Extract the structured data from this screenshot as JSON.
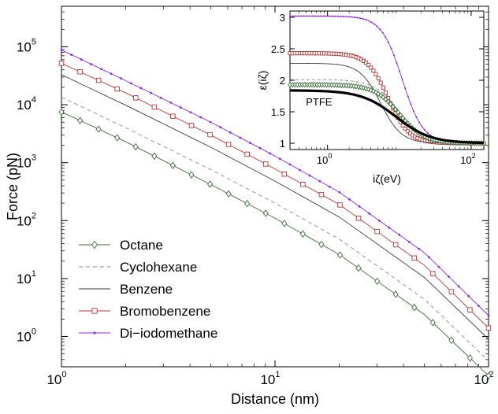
{
  "chart_data": [
    {
      "type": "line",
      "xlabel": "Distance (nm)",
      "ylabel": "Force (pN)",
      "xscale": "log",
      "yscale": "log",
      "xlim": [
        1,
        100
      ],
      "ylim": [
        0.3,
        500000
      ],
      "x_ticks": [
        {
          "base": "10",
          "exp": "0",
          "value": 1
        },
        {
          "base": "10",
          "exp": "1",
          "value": 10
        },
        {
          "base": "10",
          "exp": "2",
          "value": 100
        }
      ],
      "y_ticks": [
        {
          "base": "10",
          "exp": "0",
          "value": 1
        },
        {
          "base": "10",
          "exp": "1",
          "value": 10
        },
        {
          "base": "10",
          "exp": "2",
          "value": 100
        },
        {
          "base": "10",
          "exp": "3",
          "value": 1000
        },
        {
          "base": "10",
          "exp": "4",
          "value": 10000
        },
        {
          "base": "10",
          "exp": "5",
          "value": 100000
        }
      ],
      "grid": false,
      "legend_position": "bottom-left",
      "series": [
        {
          "name": "Octane",
          "color": "#3a6e3a",
          "marker": "diamond",
          "dash": "solid",
          "points": [
            [
              1,
              7500
            ],
            [
              2,
              2300
            ],
            [
              5,
              420
            ],
            [
              10,
              110
            ],
            [
              20,
              26
            ],
            [
              50,
              2.4
            ],
            [
              100,
              0.21
            ]
          ]
        },
        {
          "name": "Cyclohexane",
          "color": "#8a8a8a",
          "marker": "none",
          "dash": "dashed",
          "points": [
            [
              1,
              13500
            ],
            [
              2,
              4000
            ],
            [
              5,
              760
            ],
            [
              10,
              200
            ],
            [
              20,
              48
            ],
            [
              50,
              4.4
            ],
            [
              100,
              0.38
            ]
          ]
        },
        {
          "name": "Benzene",
          "color": "#3a3a3a",
          "marker": "none",
          "dash": "solid",
          "points": [
            [
              1,
              33000
            ],
            [
              2,
              9800
            ],
            [
              5,
              1850
            ],
            [
              10,
              480
            ],
            [
              20,
              115
            ],
            [
              50,
              10.5
            ],
            [
              100,
              0.9
            ]
          ]
        },
        {
          "name": "Bromobenzene",
          "color": "#b03a3a",
          "marker": "square",
          "dash": "solid",
          "points": [
            [
              1,
              52000
            ],
            [
              2,
              16000
            ],
            [
              5,
              3000
            ],
            [
              10,
              780
            ],
            [
              20,
              190
            ],
            [
              50,
              17
            ],
            [
              100,
              1.4
            ]
          ]
        },
        {
          "name": "Di−iodomethane",
          "color": "#8a2be2",
          "marker": "dot",
          "dash": "solid",
          "points": [
            [
              1,
              88000
            ],
            [
              2,
              26000
            ],
            [
              5,
              5000
            ],
            [
              10,
              1300
            ],
            [
              20,
              310
            ],
            [
              50,
              28
            ],
            [
              100,
              2.3
            ]
          ]
        }
      ]
    },
    {
      "type": "line",
      "xlabel": "iζ(eV)",
      "ylabel": "ε(iζ)",
      "xscale": "log",
      "yscale": "linear",
      "xlim": [
        0.3,
        150
      ],
      "ylim": [
        0.9,
        3.1
      ],
      "x_ticks": [
        {
          "base": "10",
          "exp": "0",
          "value": 1
        },
        {
          "base": "10",
          "exp": "2",
          "value": 100
        }
      ],
      "y_ticks": [
        {
          "label": "1",
          "value": 1
        },
        {
          "label": "1.5",
          "value": 1.5
        },
        {
          "label": "2",
          "value": 2
        },
        {
          "label": "2.5",
          "value": 2.5
        },
        {
          "label": "3",
          "value": 3
        }
      ],
      "annotations": [
        "PTFE"
      ],
      "series": [
        {
          "ref": "Di−iodomethane",
          "color": "#8a2be2",
          "marker": "dot",
          "dash": "solid",
          "eps0": 3.02,
          "wc": 11,
          "n": 3
        },
        {
          "ref": "Bromobenzene",
          "color": "#b03a3a",
          "marker": "square",
          "dash": "solid",
          "eps0": 2.43,
          "wc": 7,
          "n": 3
        },
        {
          "ref": "Benzene",
          "color": "#3a3a3a",
          "marker": "none",
          "dash": "solid",
          "eps0": 2.27,
          "wc": 5.5,
          "n": 3
        },
        {
          "ref": "Cyclohexane",
          "color": "#8a8a8a",
          "marker": "none",
          "dash": "dashed",
          "eps0": 2.01,
          "wc": 10,
          "n": 2.5
        },
        {
          "ref": "Octane",
          "color": "#3a6e3a",
          "marker": "diamond",
          "dash": "solid",
          "eps0": 1.93,
          "wc": 10,
          "n": 2.5
        },
        {
          "ref": "PTFE",
          "color": "#000000",
          "marker": "none",
          "dash": "solid",
          "eps0": 1.84,
          "wc": 9,
          "n": 1.8,
          "thick": true
        }
      ]
    }
  ]
}
